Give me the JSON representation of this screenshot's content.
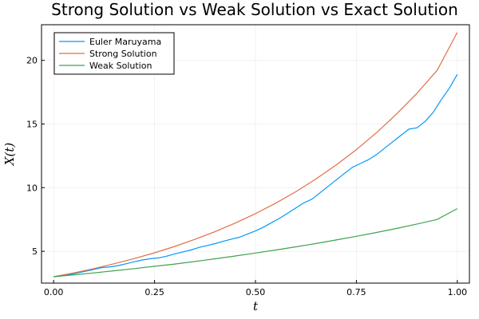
{
  "chart_data": {
    "type": "line",
    "title": "Strong Solution vs Weak Solution vs Exact Solution",
    "xlabel": "t",
    "ylabel": "X(t)",
    "xlim": [
      -0.03,
      1.03
    ],
    "ylim": [
      2.5,
      22.8
    ],
    "grid": true,
    "legend_position": "top-left",
    "x_ticks": [
      0.0,
      0.25,
      0.5,
      0.75,
      1.0
    ],
    "x_tick_labels": [
      "0.00",
      "0.25",
      "0.50",
      "0.75",
      "1.00"
    ],
    "y_ticks": [
      5,
      10,
      15,
      20
    ],
    "y_tick_labels": [
      "5",
      "10",
      "15",
      "20"
    ],
    "series": [
      {
        "name": "Euler Maruyama",
        "color": "#009AFA",
        "x": [
          0.0,
          0.02,
          0.04,
          0.06,
          0.08,
          0.1,
          0.12,
          0.14,
          0.16,
          0.18,
          0.2,
          0.22,
          0.24,
          0.26,
          0.28,
          0.3,
          0.32,
          0.34,
          0.36,
          0.38,
          0.4,
          0.42,
          0.44,
          0.46,
          0.48,
          0.5,
          0.52,
          0.54,
          0.56,
          0.58,
          0.6,
          0.62,
          0.64,
          0.66,
          0.68,
          0.7,
          0.72,
          0.74,
          0.76,
          0.78,
          0.8,
          0.82,
          0.84,
          0.86,
          0.88,
          0.9,
          0.92,
          0.94,
          0.96,
          0.98,
          1.0
        ],
        "y": [
          3.0,
          3.1,
          3.18,
          3.3,
          3.44,
          3.58,
          3.72,
          3.78,
          3.88,
          4.02,
          4.18,
          4.32,
          4.42,
          4.48,
          4.62,
          4.8,
          4.95,
          5.1,
          5.3,
          5.45,
          5.6,
          5.78,
          5.95,
          6.1,
          6.35,
          6.6,
          6.9,
          7.25,
          7.6,
          8.0,
          8.4,
          8.8,
          9.1,
          9.6,
          10.1,
          10.6,
          11.1,
          11.6,
          11.9,
          12.2,
          12.6,
          13.1,
          13.6,
          14.1,
          14.6,
          14.7,
          15.2,
          15.9,
          16.9,
          17.8,
          18.9
        ]
      },
      {
        "name": "Strong Solution",
        "color": "#E26F46",
        "x": [
          0.0,
          0.05,
          0.1,
          0.15,
          0.2,
          0.25,
          0.3,
          0.35,
          0.4,
          0.45,
          0.5,
          0.55,
          0.6,
          0.65,
          0.7,
          0.75,
          0.8,
          0.85,
          0.9,
          0.95,
          1.0
        ],
        "y": [
          3.0,
          3.3,
          3.64,
          4.02,
          4.43,
          4.88,
          5.38,
          5.94,
          6.55,
          7.22,
          7.96,
          8.78,
          9.68,
          10.68,
          11.78,
          12.99,
          14.32,
          15.8,
          17.42,
          19.21,
          22.2
        ]
      },
      {
        "name": "Weak Solution",
        "color": "#3DA44D",
        "x": [
          0.0,
          0.05,
          0.1,
          0.15,
          0.2,
          0.25,
          0.3,
          0.35,
          0.4,
          0.45,
          0.5,
          0.55,
          0.6,
          0.65,
          0.7,
          0.75,
          0.8,
          0.85,
          0.9,
          0.95,
          1.0
        ],
        "y": [
          3.0,
          3.15,
          3.3,
          3.47,
          3.64,
          3.82,
          4.0,
          4.2,
          4.41,
          4.63,
          4.86,
          5.1,
          5.35,
          5.61,
          5.89,
          6.18,
          6.48,
          6.8,
          7.14,
          7.5,
          8.35
        ]
      }
    ]
  }
}
